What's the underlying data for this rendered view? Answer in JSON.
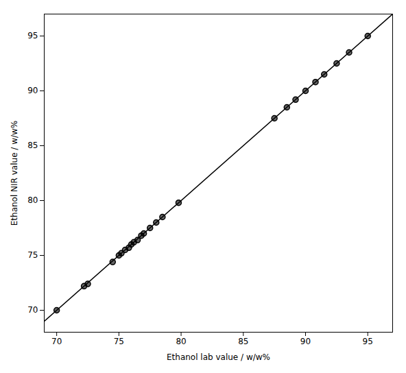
{
  "chart_data": {
    "type": "scatter",
    "x": [
      70.0,
      72.2,
      72.5,
      74.5,
      75.0,
      75.2,
      75.5,
      75.8,
      76.0,
      76.2,
      76.5,
      76.8,
      77.0,
      77.5,
      78.0,
      78.5,
      79.8,
      87.5,
      88.5,
      89.2,
      90.0,
      90.8,
      91.5,
      92.5,
      93.5,
      95.0
    ],
    "values": [
      70.0,
      72.2,
      72.4,
      74.4,
      75.0,
      75.2,
      75.5,
      75.7,
      76.0,
      76.2,
      76.4,
      76.8,
      77.0,
      77.5,
      78.0,
      78.5,
      79.8,
      87.5,
      88.5,
      89.2,
      90.0,
      90.8,
      91.5,
      92.5,
      93.5,
      95.0
    ],
    "xlim": [
      69,
      97
    ],
    "ylim": [
      68,
      97
    ],
    "xticks": [
      70,
      75,
      80,
      85,
      90,
      95
    ],
    "yticks": [
      70,
      75,
      80,
      85,
      90,
      95
    ],
    "xlabel": "Ethanol lab value / w/w%",
    "ylabel": "Ethanol NIR value / w/w%",
    "grid": false,
    "reference_line": {
      "type": "line",
      "x": [
        68,
        97
      ],
      "values": [
        68,
        97
      ]
    }
  }
}
